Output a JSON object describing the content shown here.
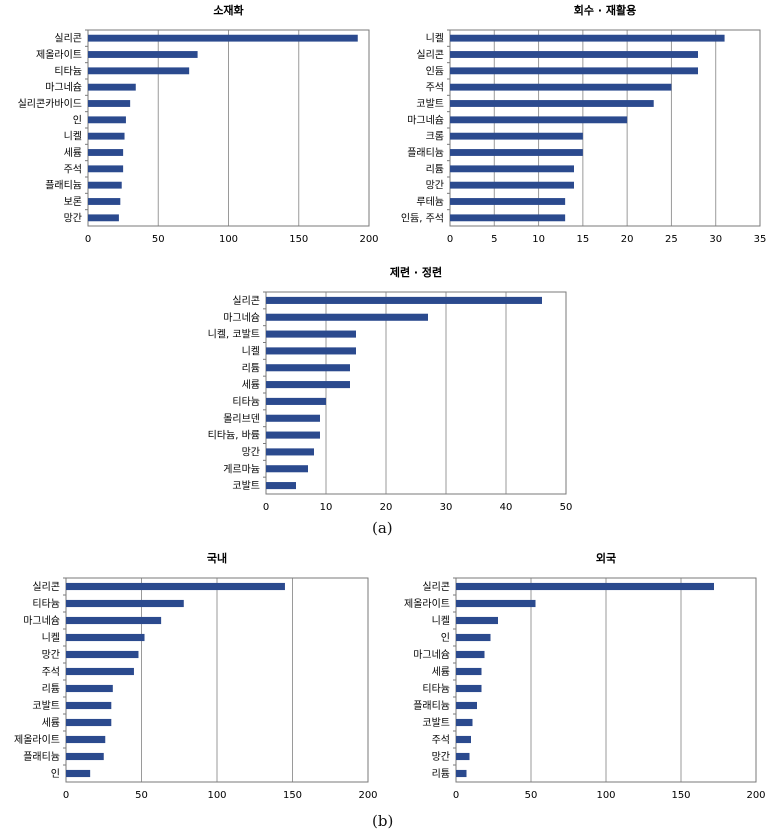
{
  "captions": {
    "a": "(a)",
    "b": "(b)"
  },
  "colors": {
    "bar": "#2b4a8e",
    "grid": "#9a9a9a",
    "frame": "#7a7a7a"
  },
  "chart_data": [
    {
      "type": "bar",
      "orientation": "horizontal",
      "title": "소재화",
      "categories": [
        "실리콘",
        "제올라이트",
        "티타늄",
        "마그네슘",
        "실리콘카바이드",
        "인",
        "니켈",
        "세륨",
        "주석",
        "플래티늄",
        "보론",
        "망간"
      ],
      "values": [
        192,
        78,
        72,
        34,
        30,
        27,
        26,
        25,
        25,
        24,
        23,
        22
      ],
      "xticks": [
        "0",
        "50",
        "100",
        "150",
        "200"
      ],
      "xlim": [
        0,
        200
      ]
    },
    {
      "type": "bar",
      "orientation": "horizontal",
      "title": "회수 · 재활용",
      "categories": [
        "니켈",
        "실리콘",
        "인듐",
        "주석",
        "코발트",
        "마그네슘",
        "크롬",
        "플래티늄",
        "리튬",
        "망간",
        "루테늄",
        "인듐, 주석"
      ],
      "values": [
        31,
        28,
        28,
        25,
        23,
        20,
        15,
        15,
        14,
        14,
        13,
        13
      ],
      "xticks": [
        "0",
        "5",
        "10",
        "15",
        "20",
        "25",
        "30",
        "35"
      ],
      "xlim": [
        0,
        35
      ]
    },
    {
      "type": "bar",
      "orientation": "horizontal",
      "title": "제련 · 정련",
      "categories": [
        "실리콘",
        "마그네슘",
        "니켈, 코발트",
        "니켈",
        "리튬",
        "세륨",
        "티타늄",
        "몰리브덴",
        "티타늄, 바륨",
        "망간",
        "게르마늄",
        "코발트"
      ],
      "values": [
        46,
        27,
        15,
        15,
        14,
        14,
        10,
        9,
        9,
        8,
        7,
        5
      ],
      "xticks": [
        "0",
        "10",
        "20",
        "30",
        "40",
        "50"
      ],
      "xlim": [
        0,
        50
      ]
    },
    {
      "type": "bar",
      "orientation": "horizontal",
      "title": "국내",
      "categories": [
        "실리콘",
        "티타늄",
        "마그네슘",
        "니켈",
        "망간",
        "주석",
        "리튬",
        "코발트",
        "세륨",
        "제올라이트",
        "플래티늄",
        "인"
      ],
      "values": [
        145,
        78,
        63,
        52,
        48,
        45,
        31,
        30,
        30,
        26,
        25,
        16
      ],
      "xticks": [
        "0",
        "50",
        "100",
        "150",
        "200"
      ],
      "xlim": [
        0,
        200
      ]
    },
    {
      "type": "bar",
      "orientation": "horizontal",
      "title": "외국",
      "categories": [
        "실리콘",
        "제올라이트",
        "니켈",
        "인",
        "마그네슘",
        "세륨",
        "티타늄",
        "플래티늄",
        "코발트",
        "주석",
        "망간",
        "리튬"
      ],
      "values": [
        172,
        53,
        28,
        23,
        19,
        17,
        17,
        14,
        11,
        10,
        9,
        7
      ],
      "xticks": [
        "0",
        "50",
        "100",
        "150",
        "200"
      ],
      "xlim": [
        0,
        200
      ]
    }
  ]
}
